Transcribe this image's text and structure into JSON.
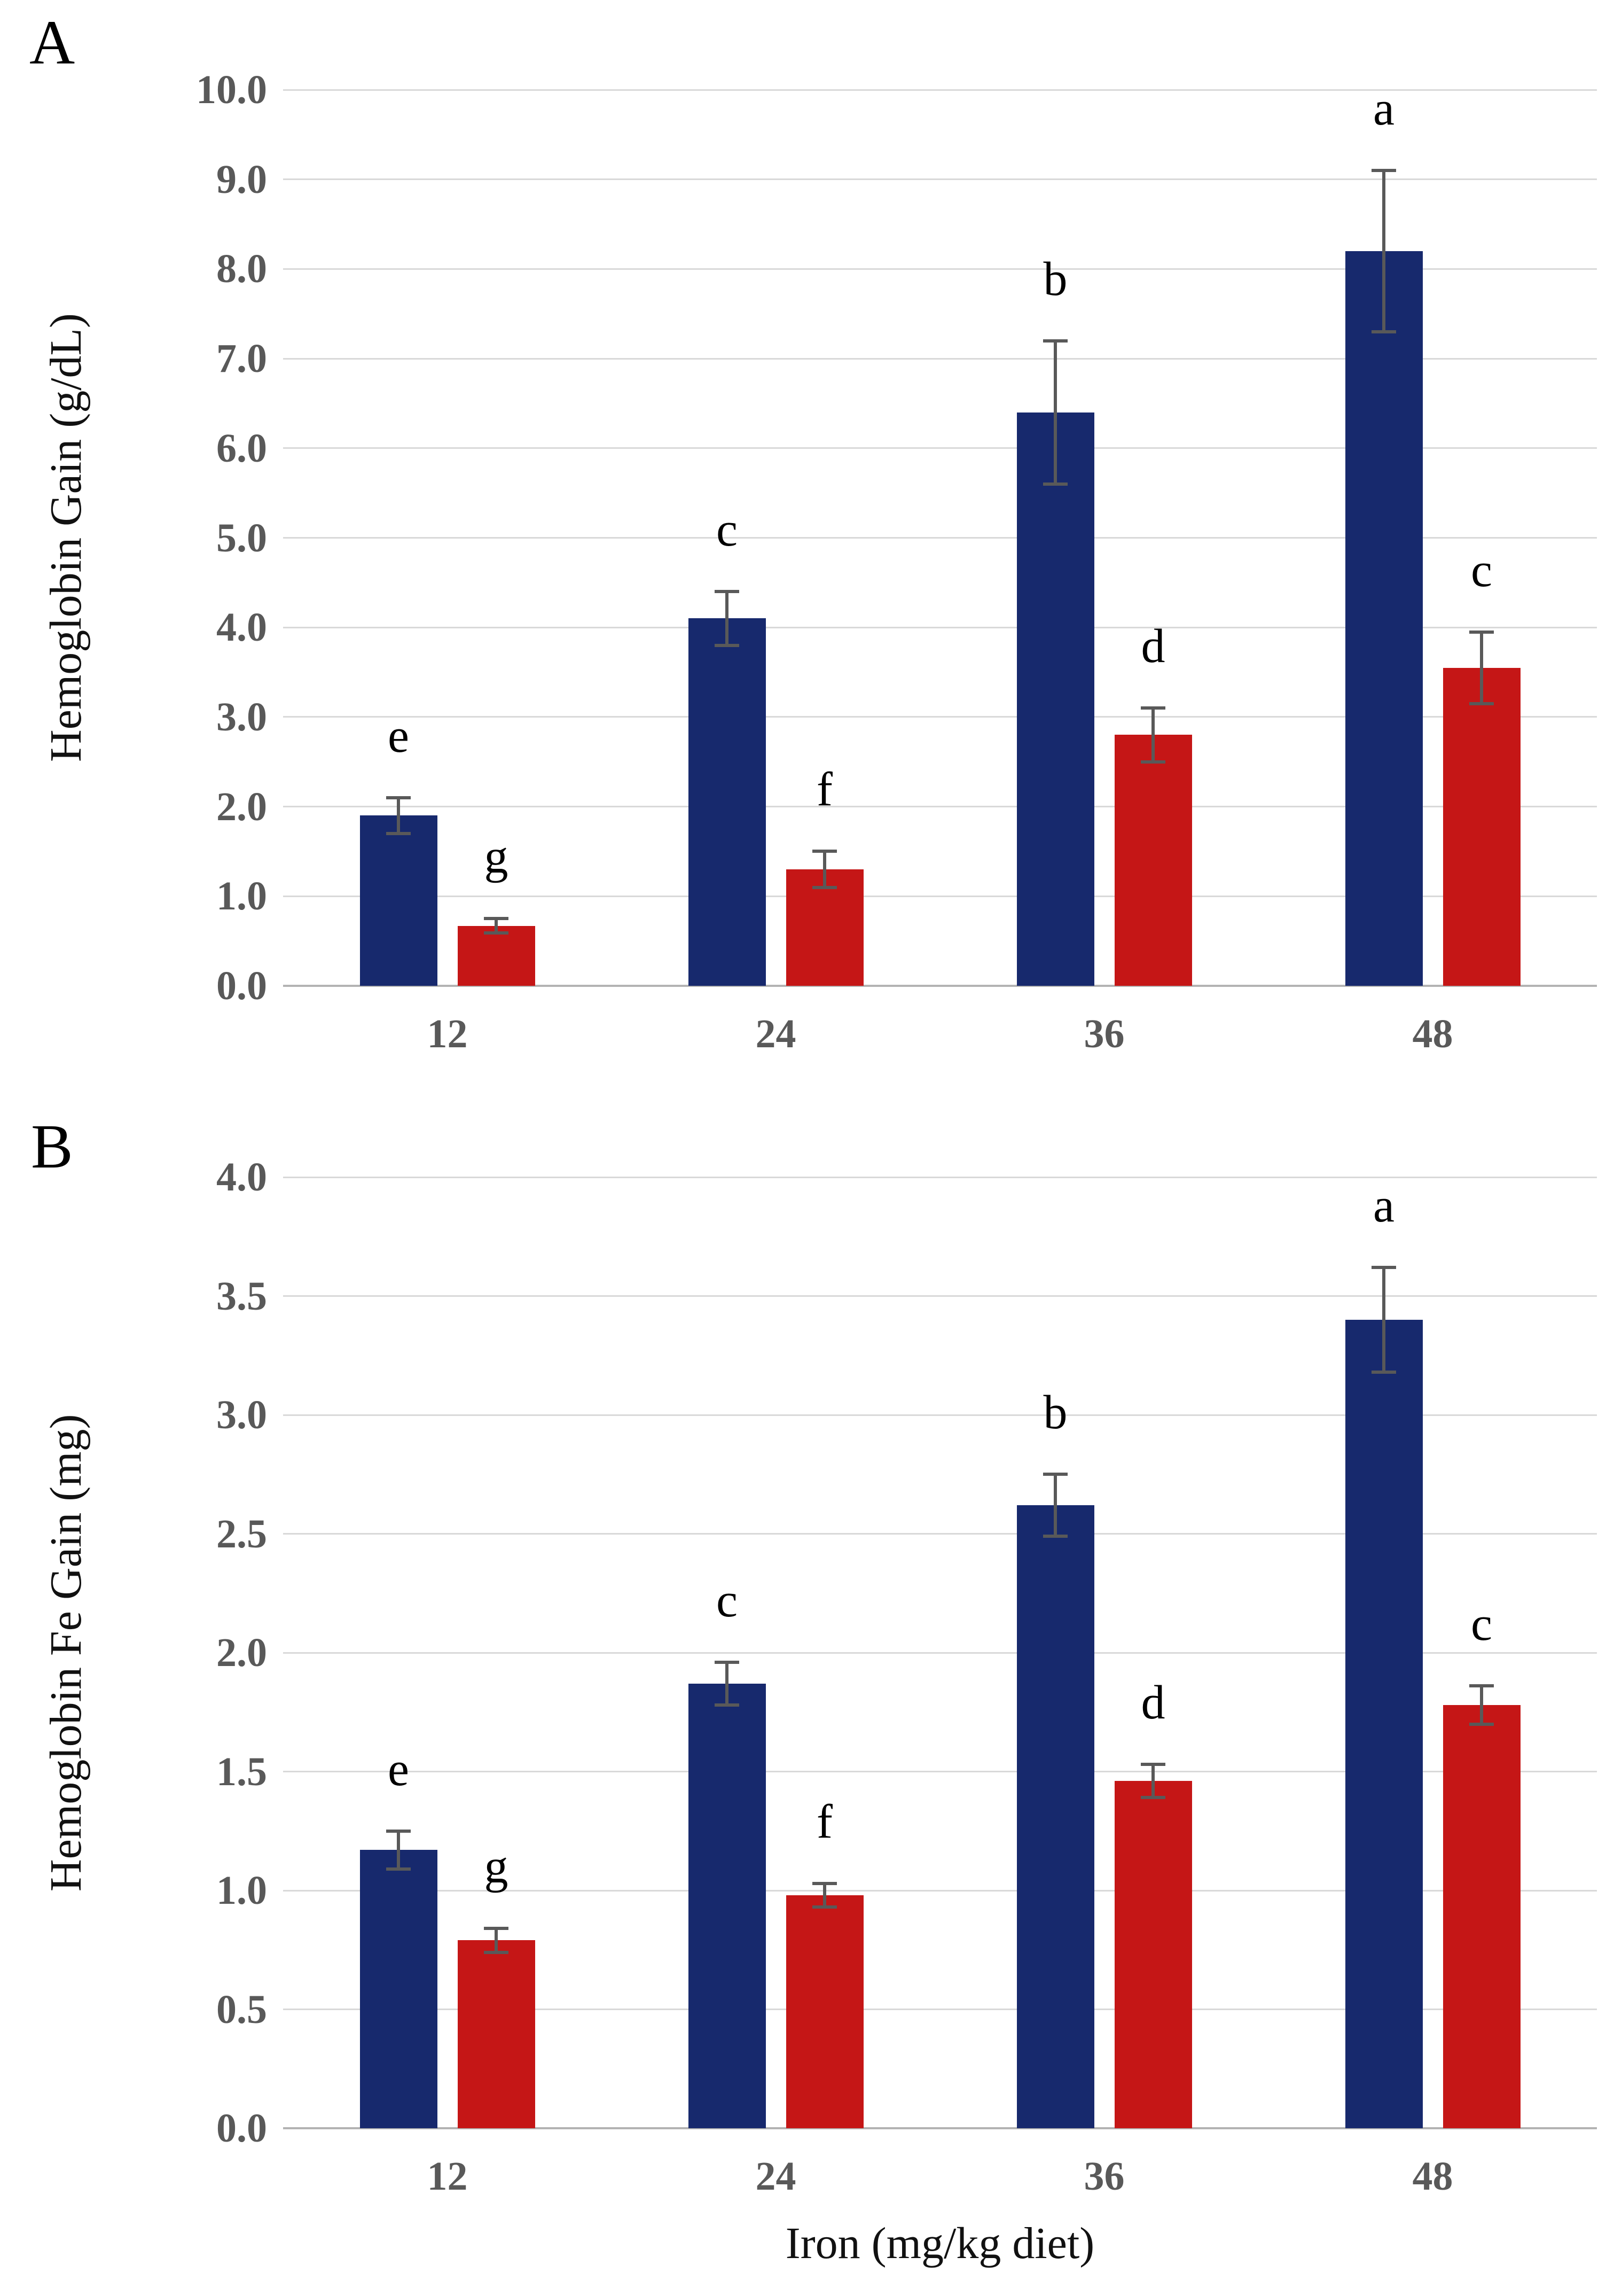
{
  "figure": {
    "panel_a_label": "A",
    "panel_b_label": "B",
    "x_axis_title": "Iron (mg/kg diet)",
    "background": "#ffffff",
    "colors": {
      "bar_blue": "#17296d",
      "bar_red": "#c51616",
      "gridline": "#d9d9d9",
      "axis_line": "#b3b3b3",
      "error_bar": "#595959",
      "tick_label": "#595959",
      "significance_letter": "#000000"
    }
  },
  "chart_data": [
    {
      "panel": "A",
      "type": "bar",
      "title": "",
      "ylabel": "Hemoglobin Gain (g/dL)",
      "xlabel": "",
      "categories": [
        "12",
        "24",
        "36",
        "48"
      ],
      "ylim": [
        0,
        10
      ],
      "ytick_step": 1.0,
      "yticks": [
        "10.0",
        "9.0",
        "8.0",
        "7.0",
        "6.0",
        "5.0",
        "4.0",
        "3.0",
        "2.0",
        "1.0",
        "0.0"
      ],
      "grid": true,
      "legend": "none",
      "series": [
        {
          "name": "blue",
          "color": "#17296d",
          "values": [
            1.9,
            4.1,
            6.4,
            8.2
          ],
          "errors": [
            0.2,
            0.3,
            0.8,
            0.9
          ],
          "letters": [
            "e",
            "c",
            "b",
            "a"
          ]
        },
        {
          "name": "red",
          "color": "#c51616",
          "values": [
            0.67,
            1.3,
            2.8,
            3.55
          ],
          "errors": [
            0.08,
            0.2,
            0.3,
            0.4
          ],
          "letters": [
            "g",
            "f",
            "d",
            "c"
          ]
        }
      ]
    },
    {
      "panel": "B",
      "type": "bar",
      "title": "",
      "ylabel": "Hemoglobin Fe Gain (mg)",
      "xlabel": "Iron (mg/kg diet)",
      "categories": [
        "12",
        "24",
        "36",
        "48"
      ],
      "ylim": [
        0,
        4
      ],
      "ytick_step": 0.5,
      "yticks": [
        "4.0",
        "3.5",
        "3.0",
        "2.5",
        "2.0",
        "1.5",
        "1.0",
        "0.5",
        "0.0"
      ],
      "grid": true,
      "legend": "none",
      "series": [
        {
          "name": "blue",
          "color": "#17296d",
          "values": [
            1.17,
            1.87,
            2.62,
            3.4
          ],
          "errors": [
            0.08,
            0.09,
            0.13,
            0.22
          ],
          "letters": [
            "e",
            "c",
            "b",
            "a"
          ]
        },
        {
          "name": "red",
          "color": "#c51616",
          "values": [
            0.79,
            0.98,
            1.46,
            1.78
          ],
          "errors": [
            0.05,
            0.05,
            0.07,
            0.08
          ],
          "letters": [
            "g",
            "f",
            "d",
            "c"
          ]
        }
      ]
    }
  ]
}
